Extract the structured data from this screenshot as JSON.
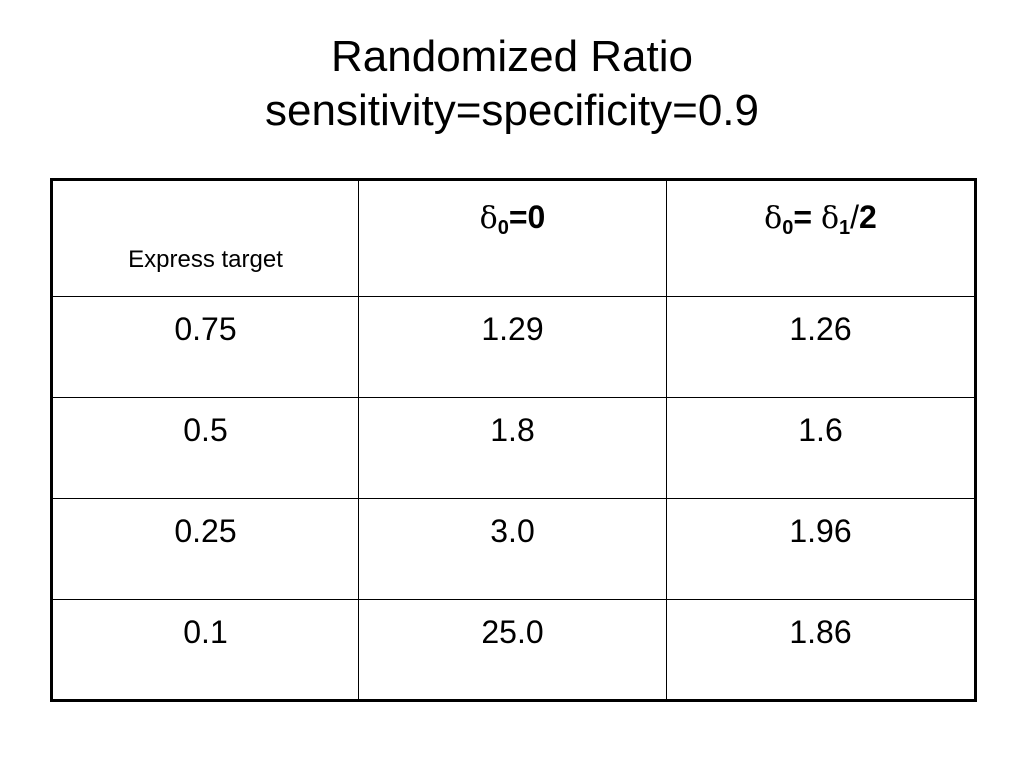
{
  "title": {
    "line1": "Randomized Ratio",
    "line2": "sensitivity=specificity=0.9"
  },
  "table": {
    "header": {
      "col1": "Express target",
      "col2": {
        "symbol": "δ",
        "sub": "0",
        "rest": "=0"
      },
      "col3": {
        "symbol_a": "δ",
        "sub_a": "0",
        "eq": "= ",
        "symbol_b": "δ",
        "sub_b": "1",
        "slash": "/",
        "rest": "2"
      }
    },
    "rows": [
      [
        "0.75",
        "1.29",
        "1.26"
      ],
      [
        "0.5",
        "1.8",
        "1.6"
      ],
      [
        "0.25",
        "3.0",
        "1.96"
      ],
      [
        "0.1",
        "25.0",
        "1.86"
      ]
    ]
  }
}
